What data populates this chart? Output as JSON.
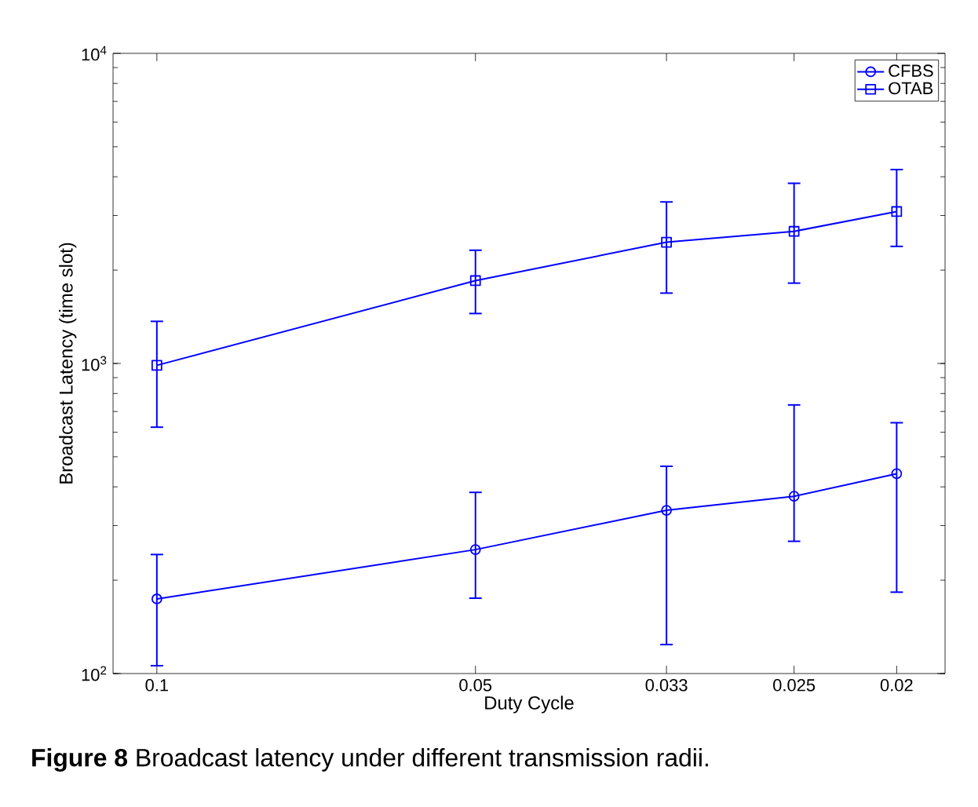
{
  "chart_data": {
    "type": "line",
    "title": "**Figure 8** Broadcast latency under different transmission radii.",
    "xlabel": "Duty Cycle",
    "ylabel": "Broadcast Latency (time slot)",
    "x": [
      0.1,
      0.05,
      0.033,
      0.025,
      0.02
    ],
    "xlim": [
      0.11,
      0.018
    ],
    "xticks": [
      0.1,
      0.05,
      0.033,
      0.025,
      0.02
    ],
    "log": "xy",
    "ylim": [
      100,
      10000
    ],
    "yticks": [
      {
        "value": 100,
        "label": "10$^{2}$"
      },
      {
        "value": 1000,
        "label": "10$^{3}$"
      },
      {
        "value": 10000,
        "label": "10$^{4}$"
      }
    ],
    "series": [
      {
        "name": "CFBS",
        "color": "#0000ff",
        "marker": "circle",
        "values": [
          174,
          251,
          336,
          373,
          441
        ],
        "errors": [
          [
            106,
            242
          ],
          [
            175,
            384
          ],
          [
            124,
            466
          ],
          [
            267,
            735
          ],
          [
            183,
            644
          ]
        ]
      },
      {
        "name": "OTAB",
        "color": "#0000ff",
        "marker": "square",
        "values": [
          986,
          1850,
          2460,
          2667,
          3090
        ],
        "errors": [
          [
            623,
            1367
          ],
          [
            1449,
            2318
          ],
          [
            1686,
            3318
          ],
          [
            1816,
            3811
          ],
          [
            2385,
            4220
          ]
        ]
      }
    ],
    "line_style": "solid",
    "grid": false,
    "legend": "top right"
  }
}
